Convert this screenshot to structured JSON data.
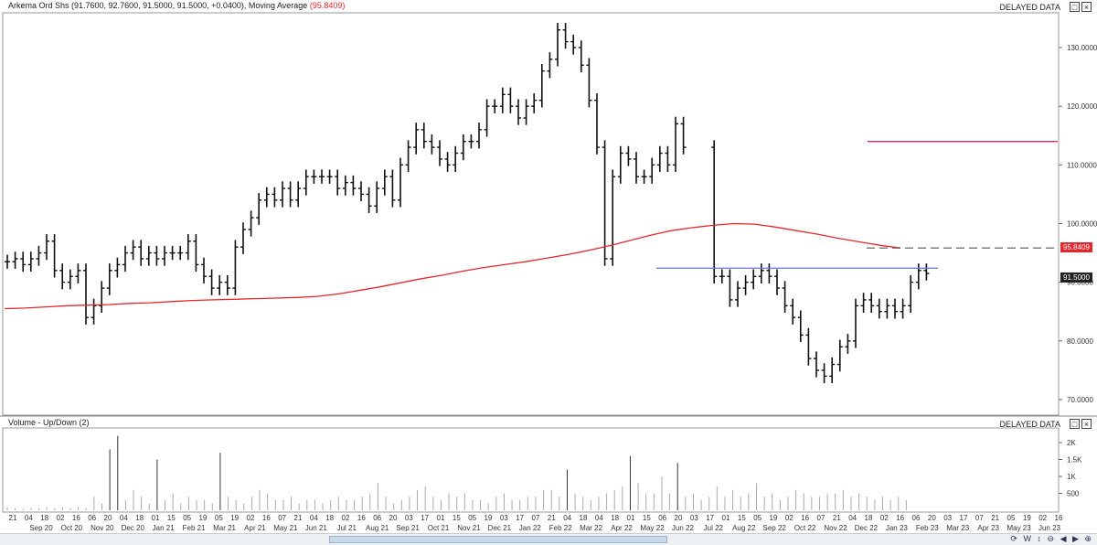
{
  "price_pane": {
    "header_text": "Arkema Ord Shs (91.7600, 92.7600, 91.5000, 91.5000, +0.0400), Moving Average",
    "ma_value_text": "(95.8409)",
    "delayed_label": "DELAYED DATA",
    "price_badge": "91.5000",
    "ma_badge": "95.8409"
  },
  "volume_pane": {
    "header_text": "Volume - Up/Down (2)",
    "delayed_label": "DELAYED DATA"
  },
  "toolbar": {
    "icons": [
      "refresh-icon",
      "w-icon",
      "scroll-icon",
      "zoom-out-icon",
      "zoom-in-icon",
      "step-back-icon",
      "step-forward-icon"
    ]
  },
  "colors": {
    "bars": "#111111",
    "moving_average": "#e3272e",
    "resistance_line": "#6e73d8",
    "target_line": "#d4266b",
    "ma_badge_bg": "#e3272e",
    "price_badge_bg": "#222222"
  },
  "chart_data": [
    {
      "type": "ohlc",
      "ylim": [
        68,
        135
      ],
      "y_ticks": [
        "130.0000",
        "120.0000",
        "110.0000",
        "100.0000",
        "90.0000",
        "80.0000",
        "70.0000"
      ],
      "y_tick_values": [
        130,
        120,
        110,
        100,
        90,
        80,
        70
      ],
      "day_ticks": [
        "21",
        "04",
        "18",
        "02",
        "16",
        "06",
        "20",
        "04",
        "18",
        "01",
        "15",
        "05",
        "19",
        "05",
        "19",
        "02",
        "16",
        "07",
        "21",
        "04",
        "18",
        "02",
        "16",
        "06",
        "20",
        "03",
        "17",
        "01",
        "15",
        "05",
        "19",
        "03",
        "17",
        "07",
        "21",
        "04",
        "18",
        "04",
        "18",
        "01",
        "15",
        "06",
        "20",
        "03",
        "17",
        "01",
        "15",
        "05",
        "19",
        "02",
        "16",
        "07",
        "21",
        "04",
        "18",
        "02",
        "16",
        "06",
        "20",
        "03",
        "17",
        "07",
        "21",
        "05",
        "19",
        "02",
        "16"
      ],
      "month_ticks": [
        "Sep 20",
        "Oct 20",
        "Nov 20",
        "Dec 20",
        "Jan 21",
        "Feb 21",
        "Mar 21",
        "Apr 21",
        "May 21",
        "Jun 21",
        "Jul 21",
        "Aug 21",
        "Sep 21",
        "Oct 21",
        "Nov 21",
        "Dec 21",
        "Jan 22",
        "Feb 22",
        "Mar 22",
        "Apr 22",
        "May 22",
        "Jun 22",
        "Jul 22",
        "Aug 22",
        "Sep 22",
        "Oct 22",
        "Nov 22",
        "Dec 22",
        "Jan 23",
        "Feb 23",
        "Mar 23",
        "Apr 23",
        "May 23",
        "Jun 23"
      ],
      "series": [
        {
          "name": "Arkema Ord Shs",
          "type": "ohlc",
          "close": [
            93.5,
            94,
            93,
            94,
            95,
            97,
            92,
            90,
            91,
            92,
            84,
            86,
            89,
            92,
            93,
            95,
            96,
            94,
            95,
            94,
            95,
            95,
            95,
            97,
            93,
            91,
            89,
            90,
            89,
            96,
            99,
            101,
            104,
            105,
            104,
            106,
            104,
            106,
            108,
            108,
            108,
            108,
            106,
            107,
            106,
            105,
            103,
            106,
            108,
            104,
            110,
            113,
            116,
            114,
            113,
            111,
            110,
            112,
            114,
            114,
            116,
            120,
            120,
            122,
            120,
            118,
            120,
            121,
            126,
            128,
            133,
            131,
            130,
            127,
            121,
            113,
            94,
            108,
            112,
            111,
            108,
            108,
            110,
            112,
            110,
            117,
            113,
            91,
            91,
            87,
            89,
            90,
            91,
            92,
            91,
            89,
            86,
            84,
            81,
            77,
            75,
            74,
            76,
            79,
            80,
            86,
            87,
            86,
            85,
            86,
            85,
            86,
            90,
            92,
            91.5
          ]
        },
        {
          "name": "Moving Average",
          "type": "line",
          "values": [
            85.5,
            85.6,
            85.8,
            86,
            86.1,
            86.2,
            86.4,
            86.5,
            86.7,
            86.9,
            87,
            87.1,
            87.2,
            87.3,
            87.4,
            87.6,
            88,
            88.6,
            89.2,
            89.9,
            90.6,
            91.2,
            91.9,
            92.5,
            93,
            93.5,
            94.1,
            94.7,
            95.4,
            96.2,
            97.1,
            98,
            98.8,
            99.3,
            99.7,
            100,
            99.9,
            99.4,
            98.8,
            98.2,
            97.5,
            96.9,
            96.3,
            95.84
          ]
        }
      ],
      "annotations": [
        {
          "type": "horizontal_line",
          "name": "resistance",
          "value": 92.4
        },
        {
          "type": "horizontal_line",
          "name": "target",
          "value": 114
        },
        {
          "type": "dashed_line",
          "name": "ma_projection",
          "value": 95.84
        }
      ]
    },
    {
      "type": "bar",
      "ylim": [
        0,
        2500
      ],
      "y_ticks": [
        "2K",
        "1.5K",
        "1K",
        "500"
      ],
      "y_tick_values": [
        2000,
        1500,
        1000,
        500
      ],
      "values": [
        80,
        60,
        50,
        70,
        60,
        90,
        60,
        80,
        70,
        100,
        60,
        400,
        200,
        1800,
        2200,
        300,
        600,
        400,
        200,
        1500,
        300,
        500,
        200,
        400,
        300,
        300,
        200,
        1700,
        400,
        300,
        200,
        400,
        600,
        500,
        300,
        300,
        400,
        200,
        300,
        300,
        200,
        300,
        400,
        300,
        300,
        400,
        500,
        800,
        400,
        200,
        300,
        400,
        600,
        700,
        400,
        300,
        500,
        400,
        500,
        300,
        300,
        200,
        400,
        500,
        300,
        300,
        400,
        400,
        600,
        600,
        400,
        1200,
        500,
        400,
        300,
        400,
        500,
        600,
        700,
        1600,
        800,
        500,
        500,
        1000,
        500,
        1400,
        400,
        500,
        300,
        400,
        700,
        400,
        600,
        400,
        500,
        800,
        400,
        500,
        300,
        400,
        600,
        500,
        400,
        400,
        500,
        500,
        600,
        400,
        500,
        400,
        300,
        400,
        300,
        400,
        300
      ]
    }
  ]
}
